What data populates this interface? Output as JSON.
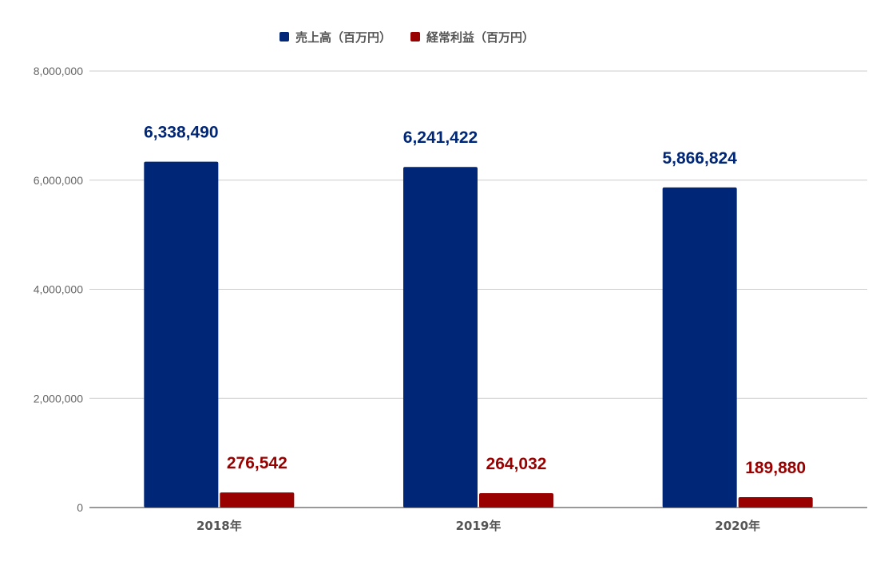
{
  "chart_data": {
    "type": "bar",
    "categories": [
      "2018年",
      "2019年",
      "2020年"
    ],
    "series": [
      {
        "name": "売上高（百万円）",
        "values": [
          6338490,
          6241422,
          5866824
        ],
        "labels": [
          "6,338,490",
          "6,241,422",
          "5,866,824"
        ],
        "color": "#002677"
      },
      {
        "name": "経常利益（百万円）",
        "values": [
          276542,
          264032,
          189880
        ],
        "labels": [
          "276,542",
          "264,032",
          "189,880"
        ],
        "color": "#990000"
      }
    ],
    "y_ticks": [
      "0",
      "2,000,000",
      "4,000,000",
      "6,000,000",
      "8,000,000"
    ],
    "ylim": [
      0,
      8000000
    ],
    "grid": true,
    "legend_position": "top-center",
    "title": "",
    "xlabel": "",
    "ylabel": ""
  },
  "colors": {
    "gridline": "#cccccc",
    "axis": "#333333"
  }
}
